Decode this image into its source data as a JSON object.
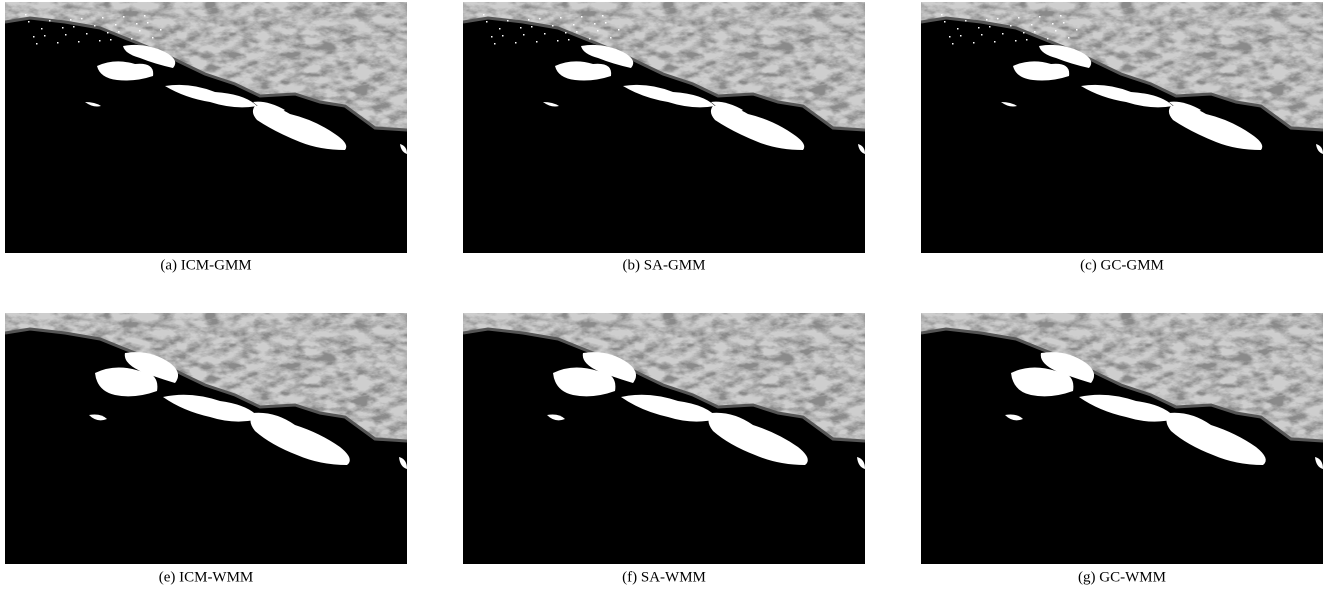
{
  "figure": {
    "panels": [
      {
        "caption": "(a) ICM-GMM"
      },
      {
        "caption": "(b) SA-GMM"
      },
      {
        "caption": "(c) GC-GMM"
      },
      {
        "caption": "(e) ICM-WMM"
      },
      {
        "caption": "(f) SA-WMM"
      },
      {
        "caption": "(g) GC-WMM"
      }
    ]
  }
}
